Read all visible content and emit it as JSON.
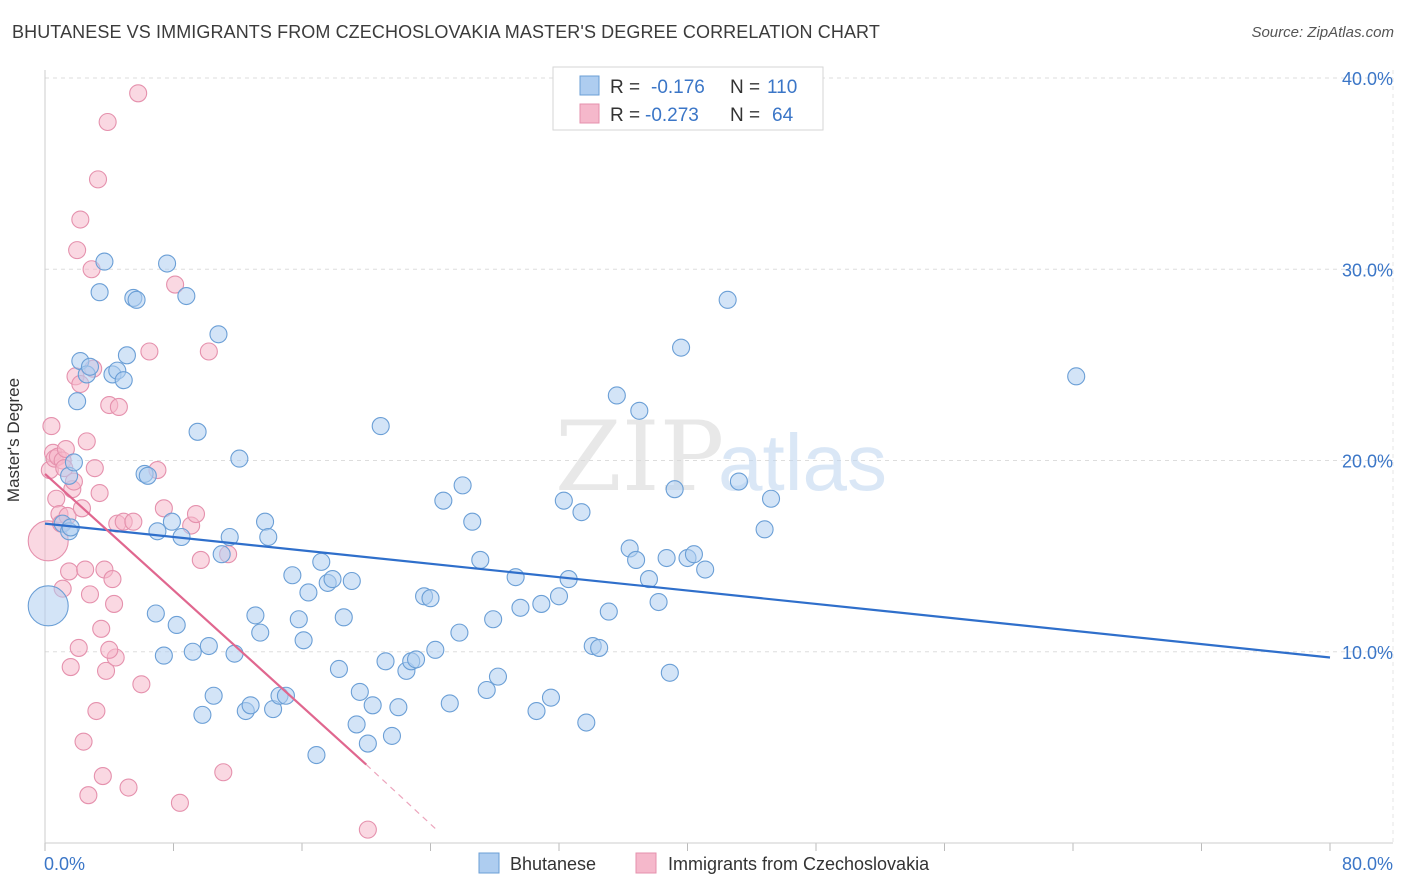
{
  "title": "BHUTANESE VS IMMIGRANTS FROM CZECHOSLOVAKIA MASTER'S DEGREE CORRELATION CHART",
  "source": "Source: ZipAtlas.com",
  "watermark": {
    "zip": "ZIP",
    "atlas": "atlas"
  },
  "colors": {
    "blue_fill": "#aecdf0",
    "blue_stroke": "#6b9fd6",
    "blue_line": "#2f6fcb",
    "pink_fill": "#f5b8cb",
    "pink_stroke": "#e591ad",
    "pink_line": "#e0678f",
    "axis_label": "#3b76c7",
    "grid": "#dddddd"
  },
  "legend": {
    "series": [
      {
        "r_label": "R =",
        "r_value": "-0.176",
        "n_label": "N =",
        "n_value": "110"
      },
      {
        "r_label": "R =",
        "r_value": "-0.273",
        "n_label": "N =",
        "n_value": "64"
      }
    ]
  },
  "chart_data": {
    "type": "scatter",
    "title": "BHUTANESE VS IMMIGRANTS FROM CZECHOSLOVAKIA MASTER'S DEGREE CORRELATION CHART",
    "xlabel": "",
    "ylabel": "Master's Degree",
    "xlim": [
      0,
      80
    ],
    "ylim": [
      0,
      40
    ],
    "x_tick_labels": [
      "0.0%",
      "80.0%"
    ],
    "y_ticks": [
      10,
      20,
      30,
      40
    ],
    "y_tick_labels": [
      "10.0%",
      "20.0%",
      "30.0%",
      "40.0%"
    ],
    "grid": true,
    "series": [
      {
        "name": "Bhutanese",
        "color": "blue",
        "r": -0.176,
        "n": 110,
        "trend": {
          "x0": 0,
          "y0": 16.7,
          "x1": 80,
          "y1": 9.7
        },
        "points": [
          [
            0.2,
            12.4,
            "big"
          ],
          [
            1.1,
            16.7
          ],
          [
            1.5,
            16.3
          ],
          [
            1.6,
            16.5
          ],
          [
            1.5,
            19.2
          ],
          [
            1.8,
            19.9
          ],
          [
            2.0,
            23.1
          ],
          [
            2.2,
            25.2
          ],
          [
            2.6,
            24.5
          ],
          [
            2.8,
            24.9
          ],
          [
            3.4,
            28.8
          ],
          [
            3.7,
            30.4
          ],
          [
            4.2,
            24.5
          ],
          [
            4.5,
            24.7
          ],
          [
            4.9,
            24.2
          ],
          [
            5.1,
            25.5
          ],
          [
            5.5,
            28.5
          ],
          [
            5.7,
            28.4
          ],
          [
            6.2,
            19.3
          ],
          [
            6.4,
            19.2
          ],
          [
            6.9,
            12.0
          ],
          [
            7.0,
            16.3
          ],
          [
            7.4,
            9.8
          ],
          [
            7.6,
            30.3
          ],
          [
            7.9,
            16.8
          ],
          [
            8.2,
            11.4
          ],
          [
            8.5,
            16.0
          ],
          [
            8.8,
            28.6
          ],
          [
            9.2,
            10.0
          ],
          [
            9.5,
            21.5
          ],
          [
            9.8,
            6.7
          ],
          [
            10.2,
            10.3
          ],
          [
            10.5,
            7.7
          ],
          [
            10.8,
            26.6
          ],
          [
            11.0,
            15.1
          ],
          [
            11.5,
            16.0
          ],
          [
            11.8,
            9.9
          ],
          [
            12.1,
            20.1
          ],
          [
            12.5,
            6.9
          ],
          [
            12.8,
            7.2
          ],
          [
            13.1,
            11.9
          ],
          [
            13.4,
            11.0
          ],
          [
            13.7,
            16.8
          ],
          [
            13.9,
            16.0
          ],
          [
            14.2,
            7.0
          ],
          [
            14.6,
            7.7
          ],
          [
            15.0,
            7.7
          ],
          [
            15.4,
            14.0
          ],
          [
            15.8,
            11.7
          ],
          [
            16.1,
            10.6
          ],
          [
            16.4,
            13.1
          ],
          [
            16.9,
            4.6
          ],
          [
            17.2,
            14.7
          ],
          [
            17.6,
            13.6
          ],
          [
            17.9,
            13.8
          ],
          [
            18.3,
            9.1
          ],
          [
            18.6,
            11.8
          ],
          [
            19.1,
            13.7
          ],
          [
            19.4,
            6.2
          ],
          [
            19.6,
            7.9
          ],
          [
            20.1,
            5.2
          ],
          [
            20.4,
            7.2
          ],
          [
            20.9,
            21.8
          ],
          [
            21.2,
            9.5
          ],
          [
            21.6,
            5.6
          ],
          [
            22.0,
            7.1
          ],
          [
            22.5,
            9.0
          ],
          [
            22.8,
            9.5
          ],
          [
            23.1,
            9.6
          ],
          [
            23.6,
            12.9
          ],
          [
            24.0,
            12.8
          ],
          [
            24.3,
            10.1
          ],
          [
            24.8,
            17.9
          ],
          [
            25.2,
            7.3
          ],
          [
            25.8,
            11.0
          ],
          [
            26.0,
            18.7
          ],
          [
            26.6,
            16.8
          ],
          [
            27.1,
            14.8
          ],
          [
            27.5,
            8.0
          ],
          [
            27.9,
            11.7
          ],
          [
            28.2,
            8.7
          ],
          [
            29.3,
            13.9
          ],
          [
            29.6,
            12.3
          ],
          [
            30.6,
            6.9
          ],
          [
            30.9,
            12.5
          ],
          [
            31.5,
            7.6
          ],
          [
            32.0,
            12.9
          ],
          [
            32.3,
            17.9
          ],
          [
            32.6,
            13.8
          ],
          [
            33.4,
            17.3
          ],
          [
            33.7,
            6.3
          ],
          [
            34.1,
            10.3
          ],
          [
            34.5,
            10.2
          ],
          [
            35.1,
            12.1
          ],
          [
            35.6,
            23.4
          ],
          [
            36.4,
            15.4
          ],
          [
            36.8,
            14.8
          ],
          [
            37.0,
            22.6
          ],
          [
            37.6,
            13.8
          ],
          [
            38.2,
            12.6
          ],
          [
            38.7,
            14.9
          ],
          [
            39.2,
            18.5
          ],
          [
            38.9,
            8.9
          ],
          [
            39.6,
            25.9
          ],
          [
            40.0,
            14.9
          ],
          [
            40.4,
            15.1
          ],
          [
            41.1,
            14.3
          ],
          [
            42.5,
            28.4
          ],
          [
            43.2,
            18.9
          ],
          [
            44.8,
            16.4
          ],
          [
            45.2,
            18.0
          ],
          [
            64.2,
            24.4
          ]
        ]
      },
      {
        "name": "Immigrants from Czechoslovakia",
        "color": "pink",
        "r": -0.273,
        "n": 64,
        "trend": {
          "x0": 0,
          "y0": 19.3,
          "x1": 20,
          "y1": 4.1,
          "dash_x1": 24.5,
          "dash_y1": 0.6
        },
        "points": [
          [
            0.2,
            15.8,
            "big"
          ],
          [
            0.3,
            19.5
          ],
          [
            0.4,
            21.8
          ],
          [
            0.5,
            20.4
          ],
          [
            0.6,
            20.1
          ],
          [
            0.7,
            18.0
          ],
          [
            0.8,
            20.2
          ],
          [
            0.9,
            17.2
          ],
          [
            1.0,
            16.7
          ],
          [
            1.1,
            20.0
          ],
          [
            1.1,
            13.3
          ],
          [
            1.2,
            19.6
          ],
          [
            1.3,
            20.6
          ],
          [
            1.4,
            17.1
          ],
          [
            1.5,
            14.2
          ],
          [
            1.6,
            9.2
          ],
          [
            1.7,
            18.5
          ],
          [
            1.8,
            18.9
          ],
          [
            1.9,
            24.4
          ],
          [
            2.0,
            31.0
          ],
          [
            2.1,
            10.2
          ],
          [
            2.2,
            24.0
          ],
          [
            2.2,
            32.6
          ],
          [
            2.3,
            17.5
          ],
          [
            2.4,
            5.3
          ],
          [
            2.5,
            14.3
          ],
          [
            2.6,
            21.0
          ],
          [
            2.7,
            2.5
          ],
          [
            2.8,
            13.0
          ],
          [
            2.9,
            30.0
          ],
          [
            3.0,
            24.8
          ],
          [
            3.1,
            19.6
          ],
          [
            3.2,
            6.9
          ],
          [
            3.3,
            34.7
          ],
          [
            3.4,
            18.3
          ],
          [
            3.5,
            11.2
          ],
          [
            3.6,
            3.5
          ],
          [
            3.7,
            14.3
          ],
          [
            3.8,
            9.0
          ],
          [
            3.9,
            37.7
          ],
          [
            4.0,
            22.9
          ],
          [
            4.2,
            13.8
          ],
          [
            4.3,
            12.5
          ],
          [
            4.4,
            9.7
          ],
          [
            4.5,
            16.7
          ],
          [
            4.6,
            22.8
          ],
          [
            4.9,
            16.8
          ],
          [
            5.2,
            2.9
          ],
          [
            5.5,
            16.8
          ],
          [
            5.8,
            39.2
          ],
          [
            6.0,
            8.3
          ],
          [
            6.5,
            25.7
          ],
          [
            7.0,
            19.5
          ],
          [
            7.4,
            17.5
          ],
          [
            8.1,
            29.2
          ],
          [
            8.4,
            2.1
          ],
          [
            9.1,
            16.6
          ],
          [
            9.4,
            17.2
          ],
          [
            9.7,
            14.8
          ],
          [
            10.2,
            25.7
          ],
          [
            11.1,
            3.7
          ],
          [
            11.4,
            15.1
          ],
          [
            20.1,
            0.7
          ],
          [
            4.0,
            10.1
          ]
        ]
      }
    ]
  }
}
